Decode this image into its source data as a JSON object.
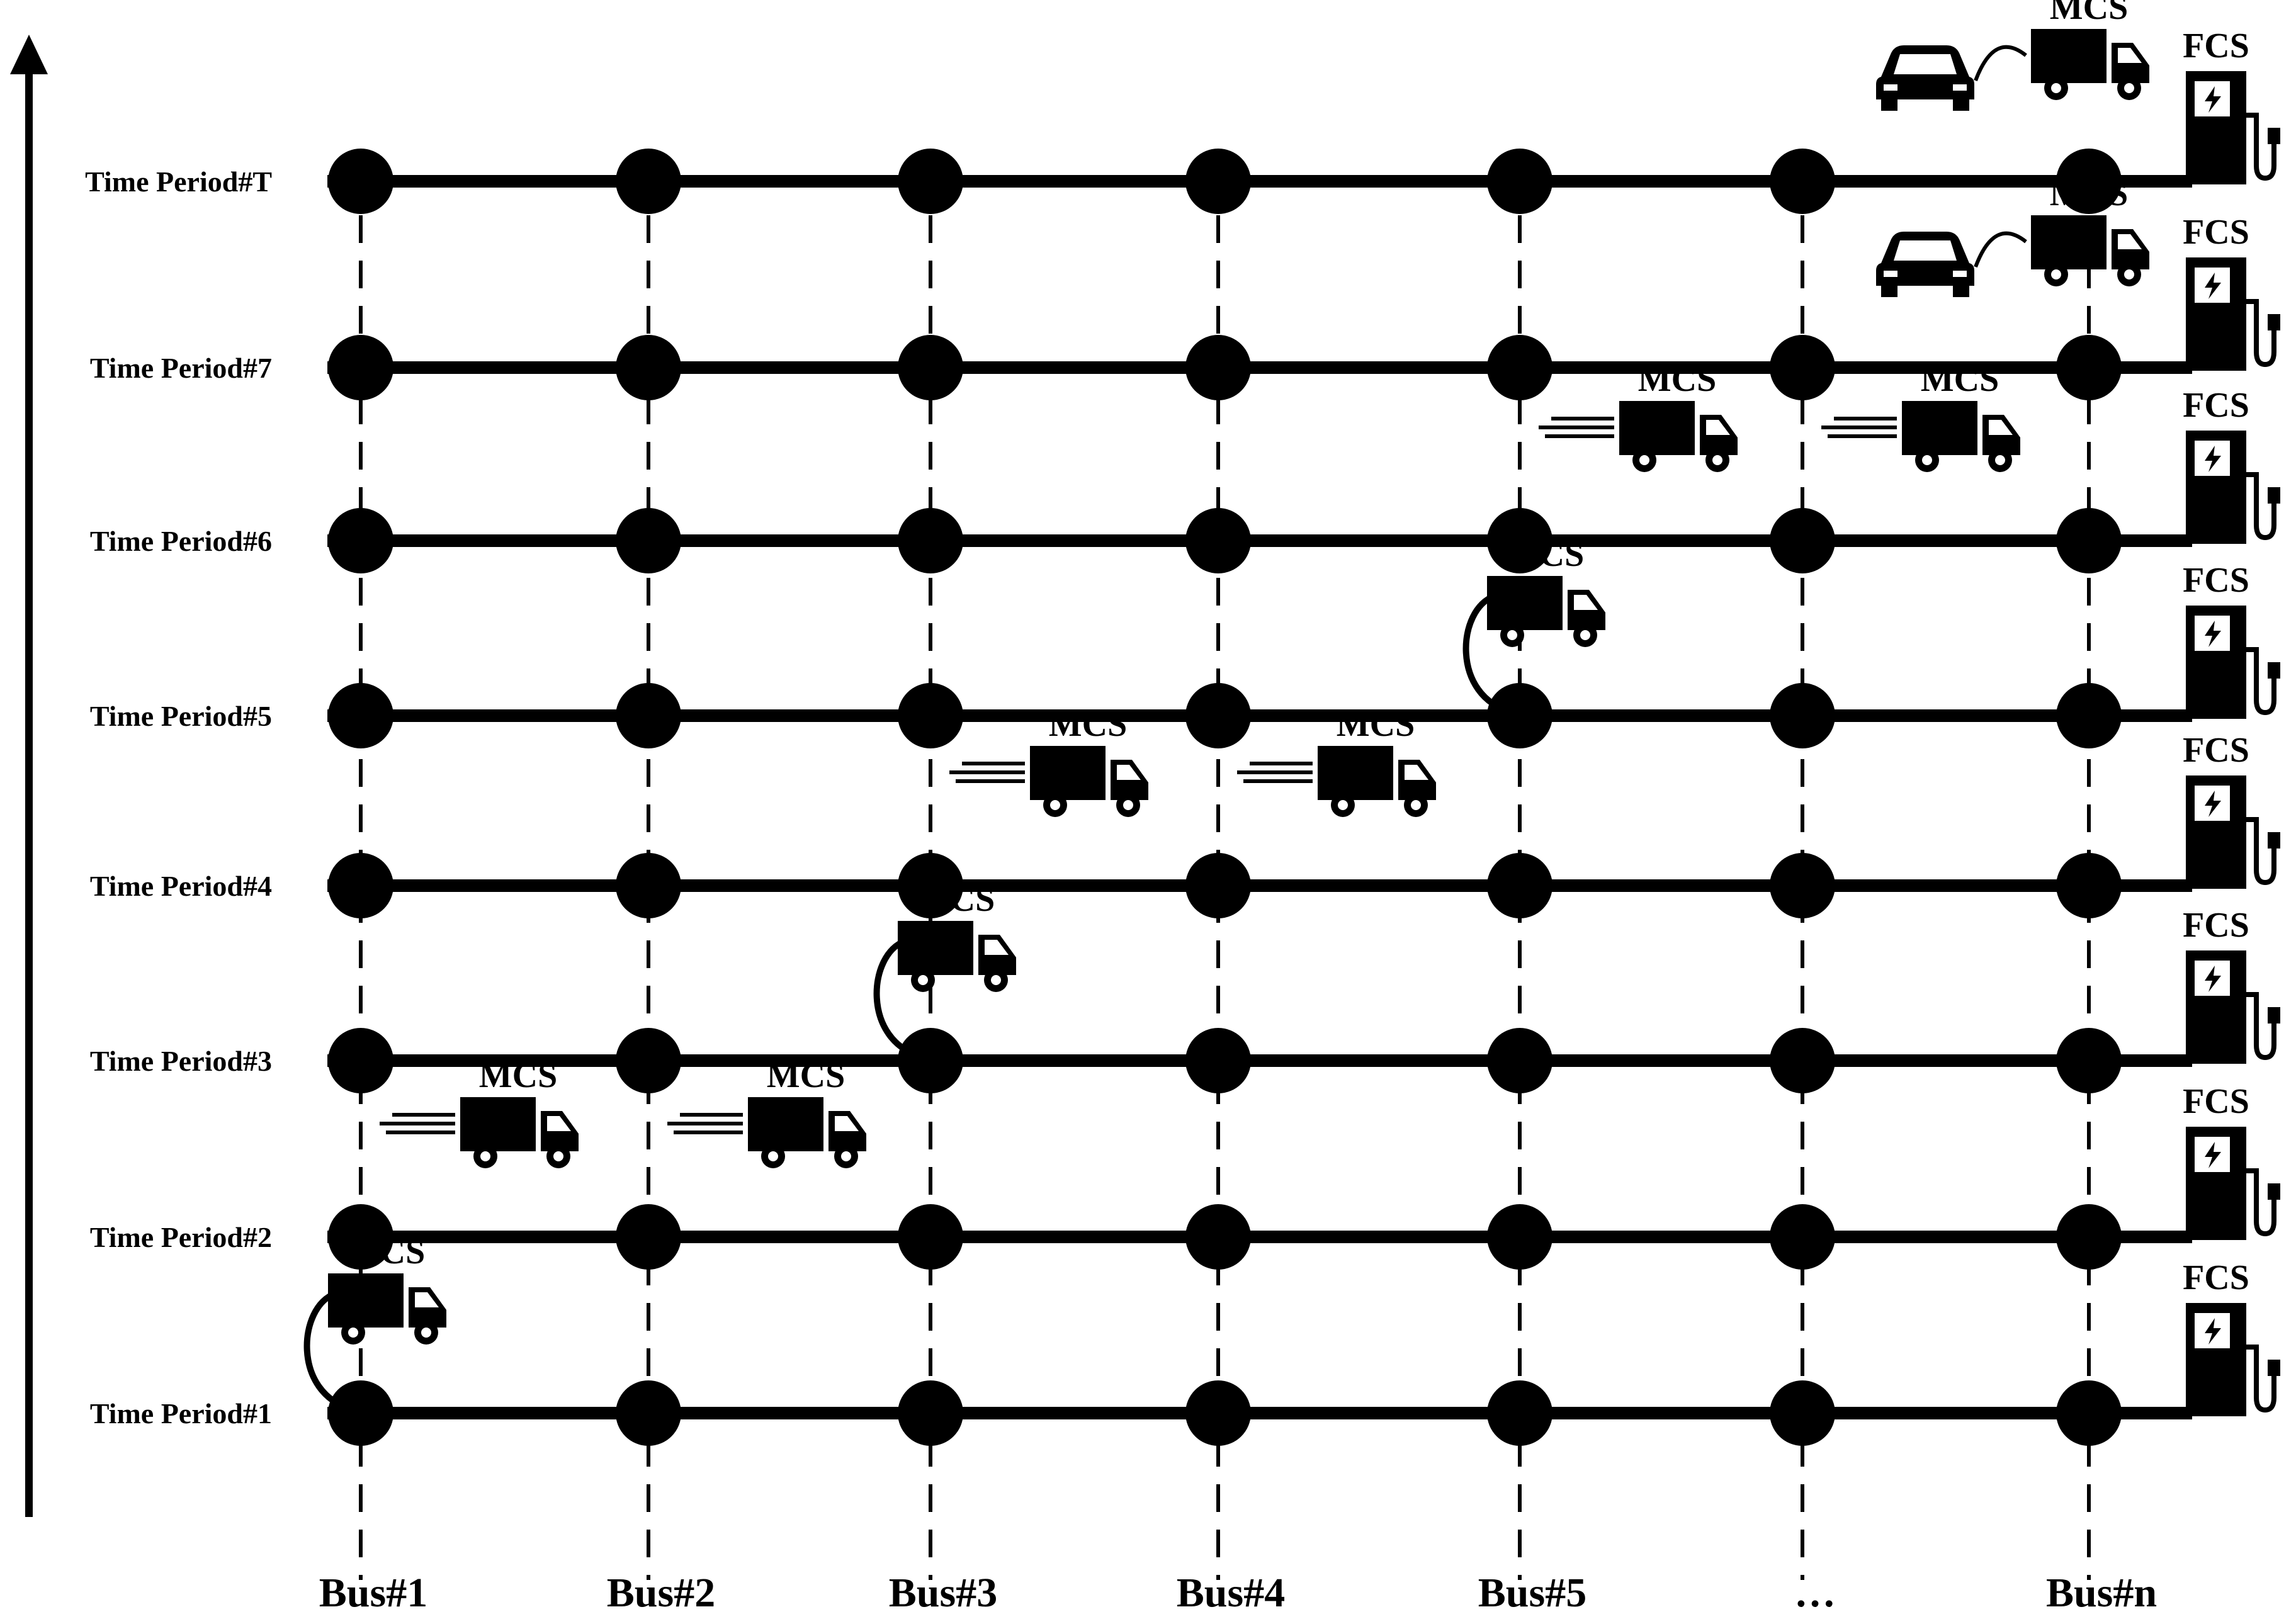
{
  "time_periods": [
    {
      "key": "p1",
      "label": "Time Period#1"
    },
    {
      "key": "p2",
      "label": "Time Period#2"
    },
    {
      "key": "p3",
      "label": "Time Period#3"
    },
    {
      "key": "p4",
      "label": "Time Period#4"
    },
    {
      "key": "p5",
      "label": "Time Period#5"
    },
    {
      "key": "p6",
      "label": "Time Period#6"
    },
    {
      "key": "p7",
      "label": "Time Period#7"
    },
    {
      "key": "pT",
      "label": "Time Period#T"
    }
  ],
  "buses": [
    {
      "key": "b1",
      "label": "Bus#1"
    },
    {
      "key": "b2",
      "label": "Bus#2"
    },
    {
      "key": "b3",
      "label": "Bus#3"
    },
    {
      "key": "b4",
      "label": "Bus#4"
    },
    {
      "key": "b5",
      "label": "Bus#5"
    },
    {
      "key": "b6",
      "label": "…"
    },
    {
      "key": "bn",
      "label": "Bus#n"
    }
  ],
  "mcs_label": "MCS",
  "fcs_label": "FCS",
  "mcs_events": [
    {
      "period": 1,
      "bus": 1,
      "state": "charging"
    },
    {
      "period": 2,
      "bus": 1,
      "state": "moving"
    },
    {
      "period": 2,
      "bus": 2,
      "state": "moving"
    },
    {
      "period": 3,
      "bus": 3,
      "state": "charging"
    },
    {
      "period": 4,
      "bus": 3,
      "state": "moving"
    },
    {
      "period": 4,
      "bus": 4,
      "state": "moving"
    },
    {
      "period": 5,
      "bus": 5,
      "state": "charging"
    },
    {
      "period": 6,
      "bus": 5,
      "state": "moving"
    },
    {
      "period": 6,
      "bus": 6,
      "state": "moving"
    },
    {
      "period": 7,
      "bus": 7,
      "state": "serving-ev"
    },
    {
      "period": 8,
      "bus": 7,
      "state": "serving-ev"
    }
  ],
  "icons": {
    "truck": "truck-icon",
    "car": "car-icon",
    "charger": "charging-station-icon",
    "time_axis": "arrow-up-icon"
  }
}
